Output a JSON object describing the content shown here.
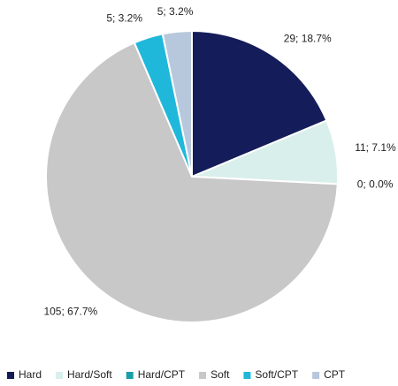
{
  "chart_data": {
    "type": "pie",
    "categories": [
      "Hard",
      "Hard/Soft",
      "Hard/CPT",
      "Soft",
      "Soft/CPT",
      "CPT"
    ],
    "values": [
      29,
      11,
      0,
      105,
      5,
      5
    ],
    "value_labels": [
      "29; 18.7%",
      "11; 7.1%",
      "0; 0.0%",
      "105; 67.7%",
      "5; 3.2%",
      "5; 3.2%"
    ],
    "colors": [
      "#141c5a",
      "#d9efec",
      "#1a9ea8",
      "#c8c8c8",
      "#1fb8da",
      "#b8c8dc"
    ],
    "legend": "bottom"
  }
}
